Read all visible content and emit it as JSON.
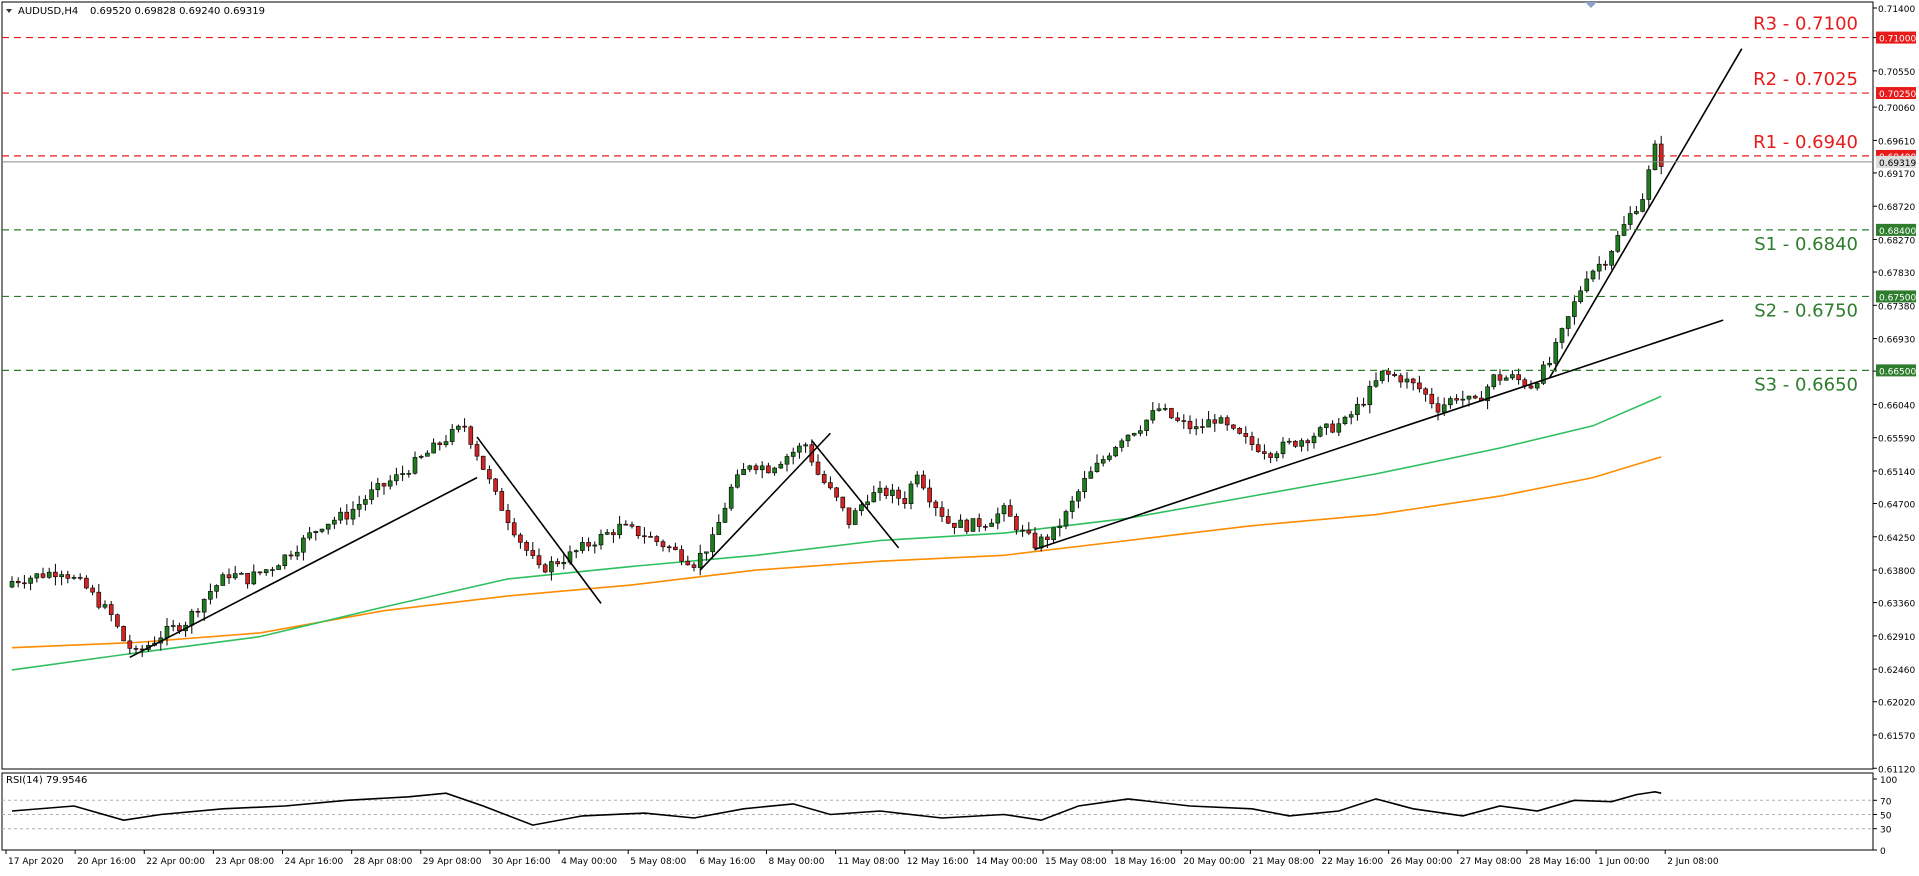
{
  "header": {
    "symbol": "AUDUSD,H4",
    "ohlc": "0.69520 0.69828 0.69240 0.69319"
  },
  "rsi_label": "RSI(14) 79.9546",
  "colors": {
    "bull": "#1e7b1e",
    "bear": "#d12424",
    "resistance": "#e81b1b",
    "support": "#2e7d2e",
    "ma_fast": "#2fbf5f",
    "ma_slow": "#ff8c00",
    "trendline": "#000000",
    "rsi": "#000000"
  },
  "chart_data": {
    "type": "candlestick",
    "symbol": "AUDUSD",
    "timeframe": "H4",
    "ylim": [
      0.6111,
      0.714
    ],
    "price_ticks": [
      "0.71400",
      "0.71000",
      "0.70550",
      "0.70060",
      "0.69610",
      "0.69170",
      "0.68720",
      "0.68270",
      "0.67830",
      "0.67380",
      "0.66930",
      "0.66490",
      "0.66040",
      "0.65590",
      "0.65140",
      "0.64700",
      "0.64250",
      "0.63800",
      "0.63360",
      "0.62910",
      "0.62460",
      "0.62020",
      "0.61570",
      "0.61120"
    ],
    "time_labels": [
      "17 Apr 2020",
      "20 Apr 16:00",
      "22 Apr 00:00",
      "23 Apr 08:00",
      "24 Apr 16:00",
      "28 Apr 08:00",
      "29 Apr 08:00",
      "30 Apr 16:00",
      "4 May 00:00",
      "5 May 08:00",
      "6 May 16:00",
      "8 May 00:00",
      "11 May 08:00",
      "12 May 16:00",
      "14 May 00:00",
      "15 May 08:00",
      "18 May 16:00",
      "20 May 00:00",
      "21 May 08:00",
      "22 May 16:00",
      "26 May 00:00",
      "27 May 08:00",
      "28 May 16:00",
      "1 Jun 00:00",
      "2 Jun 08:00"
    ],
    "levels": [
      {
        "label": "R3 - 0.7100",
        "value": 0.71,
        "kind": "resistance",
        "tag": "0.71000"
      },
      {
        "label": "R2 - 0.7025",
        "value": 0.7025,
        "kind": "resistance",
        "tag": "0.70250"
      },
      {
        "label": "R1 - 0.6940",
        "value": 0.694,
        "kind": "resistance",
        "tag": "0.69400"
      },
      {
        "label": "S1 - 0.6840",
        "value": 0.684,
        "kind": "support",
        "tag": "0.68400"
      },
      {
        "label": "S2 - 0.6750",
        "value": 0.675,
        "kind": "support",
        "tag": "0.67500"
      },
      {
        "label": "S3 - 0.6650",
        "value": 0.665,
        "kind": "support",
        "tag": "0.66500"
      }
    ],
    "current_price": 0.69319,
    "current_price_tag": "0.69319",
    "close_path": [
      [
        0,
        0.6365
      ],
      [
        8,
        0.638
      ],
      [
        12,
        0.6355
      ],
      [
        16,
        0.6318
      ],
      [
        18,
        0.6285
      ],
      [
        20,
        0.6266
      ],
      [
        24,
        0.6292
      ],
      [
        28,
        0.631
      ],
      [
        32,
        0.6352
      ],
      [
        35,
        0.6375
      ],
      [
        38,
        0.6368
      ],
      [
        42,
        0.6385
      ],
      [
        46,
        0.6412
      ],
      [
        50,
        0.6442
      ],
      [
        54,
        0.6455
      ],
      [
        58,
        0.6484
      ],
      [
        62,
        0.6505
      ],
      [
        66,
        0.6531
      ],
      [
        70,
        0.6558
      ],
      [
        73,
        0.6575
      ],
      [
        75,
        0.6538
      ],
      [
        78,
        0.648
      ],
      [
        82,
        0.642
      ],
      [
        85,
        0.638
      ],
      [
        90,
        0.64
      ],
      [
        94,
        0.642
      ],
      [
        98,
        0.6438
      ],
      [
        102,
        0.6428
      ],
      [
        106,
        0.641
      ],
      [
        110,
        0.639
      ],
      [
        113,
        0.642
      ],
      [
        116,
        0.649
      ],
      [
        119,
        0.6525
      ],
      [
        122,
        0.6518
      ],
      [
        125,
        0.6535
      ],
      [
        128,
        0.655
      ],
      [
        130,
        0.651
      ],
      [
        133,
        0.6475
      ],
      [
        135,
        0.6445
      ],
      [
        138,
        0.648
      ],
      [
        141,
        0.6485
      ],
      [
        144,
        0.6475
      ],
      [
        146,
        0.6515
      ],
      [
        148,
        0.648
      ],
      [
        151,
        0.6445
      ],
      [
        154,
        0.644
      ],
      [
        157,
        0.6445
      ],
      [
        160,
        0.646
      ],
      [
        163,
        0.643
      ],
      [
        165,
        0.6415
      ],
      [
        168,
        0.643
      ],
      [
        170,
        0.6455
      ],
      [
        173,
        0.65
      ],
      [
        176,
        0.653
      ],
      [
        179,
        0.656
      ],
      [
        182,
        0.6575
      ],
      [
        185,
        0.6598
      ],
      [
        188,
        0.658
      ],
      [
        191,
        0.657
      ],
      [
        194,
        0.6585
      ],
      [
        197,
        0.6565
      ],
      [
        200,
        0.655
      ],
      [
        203,
        0.654
      ],
      [
        206,
        0.655
      ],
      [
        209,
        0.656
      ],
      [
        212,
        0.657
      ],
      [
        215,
        0.658
      ],
      [
        218,
        0.661
      ],
      [
        221,
        0.6645
      ],
      [
        224,
        0.664
      ],
      [
        227,
        0.6625
      ],
      [
        230,
        0.66
      ],
      [
        233,
        0.6615
      ],
      [
        236,
        0.6605
      ],
      [
        239,
        0.664
      ],
      [
        242,
        0.664
      ],
      [
        245,
        0.663
      ],
      [
        248,
        0.666
      ],
      [
        250,
        0.67
      ],
      [
        252,
        0.674
      ],
      [
        254,
        0.678
      ],
      [
        257,
        0.68
      ],
      [
        259,
        0.683
      ],
      [
        261,
        0.686
      ],
      [
        263,
        0.6885
      ],
      [
        265,
        0.695
      ],
      [
        266,
        0.6932
      ]
    ],
    "ma_fast": [
      [
        0,
        0.6245
      ],
      [
        20,
        0.6268
      ],
      [
        40,
        0.629
      ],
      [
        60,
        0.633
      ],
      [
        80,
        0.6368
      ],
      [
        100,
        0.6385
      ],
      [
        120,
        0.64
      ],
      [
        140,
        0.642
      ],
      [
        160,
        0.643
      ],
      [
        180,
        0.645
      ],
      [
        200,
        0.648
      ],
      [
        220,
        0.651
      ],
      [
        240,
        0.6545
      ],
      [
        255,
        0.6575
      ],
      [
        266,
        0.6615
      ]
    ],
    "ma_slow": [
      [
        0,
        0.6275
      ],
      [
        20,
        0.6282
      ],
      [
        40,
        0.6295
      ],
      [
        60,
        0.6325
      ],
      [
        80,
        0.6345
      ],
      [
        100,
        0.636
      ],
      [
        120,
        0.638
      ],
      [
        140,
        0.6392
      ],
      [
        160,
        0.64
      ],
      [
        180,
        0.642
      ],
      [
        200,
        0.644
      ],
      [
        220,
        0.6455
      ],
      [
        240,
        0.648
      ],
      [
        255,
        0.6505
      ],
      [
        266,
        0.6533
      ]
    ],
    "trendlines": [
      [
        [
          19,
          0.6262
        ],
        [
          75,
          0.6505
        ]
      ],
      [
        [
          75,
          0.656
        ],
        [
          95,
          0.6335
        ]
      ],
      [
        [
          111,
          0.638
        ],
        [
          132,
          0.6565
        ]
      ],
      [
        [
          129,
          0.6555
        ],
        [
          143,
          0.641
        ]
      ],
      [
        [
          165,
          0.6408
        ],
        [
          276,
          0.6718
        ]
      ],
      [
        [
          248,
          0.664
        ],
        [
          279,
          0.7085
        ]
      ]
    ],
    "rsi": {
      "name": "RSI(14)",
      "value": 79.9546,
      "ylim": [
        0,
        100
      ],
      "ticks": [
        100,
        70,
        50,
        30,
        0
      ],
      "path": [
        [
          0,
          55
        ],
        [
          10,
          62
        ],
        [
          18,
          42
        ],
        [
          24,
          50
        ],
        [
          34,
          58
        ],
        [
          44,
          62
        ],
        [
          54,
          70
        ],
        [
          64,
          75
        ],
        [
          70,
          80
        ],
        [
          76,
          62
        ],
        [
          84,
          35
        ],
        [
          92,
          48
        ],
        [
          102,
          52
        ],
        [
          110,
          45
        ],
        [
          118,
          58
        ],
        [
          126,
          65
        ],
        [
          132,
          50
        ],
        [
          140,
          55
        ],
        [
          150,
          45
        ],
        [
          160,
          50
        ],
        [
          166,
          42
        ],
        [
          172,
          62
        ],
        [
          180,
          72
        ],
        [
          190,
          62
        ],
        [
          200,
          58
        ],
        [
          206,
          48
        ],
        [
          214,
          55
        ],
        [
          220,
          72
        ],
        [
          226,
          58
        ],
        [
          234,
          48
        ],
        [
          240,
          62
        ],
        [
          246,
          55
        ],
        [
          252,
          70
        ],
        [
          258,
          68
        ],
        [
          262,
          78
        ],
        [
          265,
          82
        ],
        [
          266,
          80
        ]
      ]
    }
  }
}
